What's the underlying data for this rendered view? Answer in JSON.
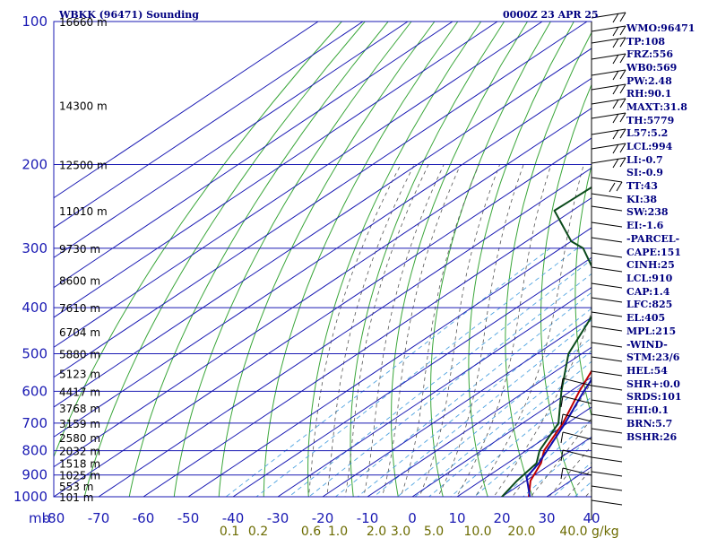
{
  "header": {
    "station": "WBKK (96471) Sounding",
    "time": "0000Z 23 APR 25"
  },
  "chart_data": {
    "type": "skew-t",
    "pressure_levels": [
      100,
      200,
      300,
      400,
      500,
      600,
      700,
      800,
      900,
      1000
    ],
    "pressure_unit_label": "mb",
    "temperature_ticks": [
      -80,
      -70,
      -60,
      -50,
      -40,
      -30,
      -20,
      -10,
      0,
      10,
      20,
      30,
      40
    ],
    "temperature_ticks_shown": [
      "-80",
      "-70",
      "-60",
      "-50",
      "-40",
      "-30",
      "-20",
      "-10",
      "0",
      "10",
      "20",
      "30",
      "40"
    ],
    "mixing_ratio_labels": [
      "0.1",
      "0.2",
      "0.6",
      "1.0",
      "2.0",
      "3.0",
      "5.0",
      "10.0",
      "20.0",
      "40.0"
    ],
    "mixing_ratio_unit": "g/kg",
    "height_labels": [
      {
        "p": 100,
        "text": "16660 m"
      },
      {
        "p": 150,
        "text": "14300 m"
      },
      {
        "p": 200,
        "text": "12500 m"
      },
      {
        "p": 250,
        "text": "11010 m"
      },
      {
        "p": 300,
        "text": "9730 m"
      },
      {
        "p": 350,
        "text": "8600 m"
      },
      {
        "p": 400,
        "text": "7610 m"
      },
      {
        "p": 450,
        "text": "6704 m"
      },
      {
        "p": 500,
        "text": "5880 m"
      },
      {
        "p": 550,
        "text": "5123 m"
      },
      {
        "p": 600,
        "text": "4417 m"
      },
      {
        "p": 650,
        "text": "3768 m"
      },
      {
        "p": 700,
        "text": "3159 m"
      },
      {
        "p": 750,
        "text": "2580 m"
      },
      {
        "p": 800,
        "text": "2032 m"
      },
      {
        "p": 850,
        "text": "1518 m"
      },
      {
        "p": 900,
        "text": "1025 m"
      },
      {
        "p": 950,
        "text": "553 m"
      },
      {
        "p": 1000,
        "text": "101 m"
      }
    ],
    "temperature_profile": [
      {
        "p": 1010,
        "t": 28
      },
      {
        "p": 1000,
        "t": 26
      },
      {
        "p": 925,
        "t": 21
      },
      {
        "p": 850,
        "t": 17.5
      },
      {
        "p": 800,
        "t": 14
      },
      {
        "p": 700,
        "t": 9
      },
      {
        "p": 600,
        "t": 2
      },
      {
        "p": 500,
        "t": -5.5
      },
      {
        "p": 400,
        "t": -15
      },
      {
        "p": 300,
        "t": -31
      },
      {
        "p": 250,
        "t": -41
      },
      {
        "p": 200,
        "t": -52
      },
      {
        "p": 150,
        "t": -66
      },
      {
        "p": 100,
        "t": -80
      }
    ],
    "dewpoint_profile": [
      {
        "p": 1010,
        "t": 22
      },
      {
        "p": 1000,
        "t": 20
      },
      {
        "p": 925,
        "t": 18
      },
      {
        "p": 850,
        "t": 16.5
      },
      {
        "p": 800,
        "t": 13
      },
      {
        "p": 700,
        "t": 8
      },
      {
        "p": 600,
        "t": -2
      },
      {
        "p": 500,
        "t": -13
      },
      {
        "p": 400,
        "t": -22
      },
      {
        "p": 350,
        "t": -31
      },
      {
        "p": 300,
        "t": -45
      },
      {
        "p": 290,
        "t": -50
      },
      {
        "p": 250,
        "t": -64
      },
      {
        "p": 200,
        "t": -63
      },
      {
        "p": 150,
        "t": -73
      },
      {
        "p": 100,
        "t": -88
      }
    ],
    "parcel_profile": [
      {
        "p": 1010,
        "t": 27
      },
      {
        "p": 910,
        "t": 19
      },
      {
        "p": 850,
        "t": 17
      },
      {
        "p": 700,
        "t": 9.5
      },
      {
        "p": 600,
        "t": 3
      },
      {
        "p": 500,
        "t": -4
      },
      {
        "p": 400,
        "t": -15
      },
      {
        "p": 300,
        "t": -31
      },
      {
        "p": 200,
        "t": -55
      },
      {
        "p": 150,
        "t": -71
      },
      {
        "p": 130,
        "t": -81
      }
    ]
  },
  "indices": {
    "wmo": "WMO:96471",
    "tp": "TP:108",
    "frz": "FRZ:556",
    "wb0": "WB0:569",
    "pw": "PW:2.48",
    "rh": "RH:90.1",
    "maxt": "MAXT:31.8",
    "th": "TH:5779",
    "l57": "L57:5.2",
    "lcl": "LCL:994",
    "li": "LI:-0.7",
    "si": "SI:-0.9",
    "tt": "TT:43",
    "ki": "KI:38",
    "sw": "SW:238",
    "ei": "EI:-1.6",
    "parcel_header": "-PARCEL-",
    "cape": "CAPE:151",
    "cinh": "CINH:25",
    "plcl": "LCL:910",
    "cap": "CAP:1.4",
    "lfc": "LFC:825",
    "el": "EL:405",
    "mpl": "MPL:215",
    "wind_header": "-WIND-",
    "stm": "STM:23/6",
    "hel": "HEL:54",
    "shr": "SHR+:0.0",
    "srds": "SRDS:101",
    "ehi": "EHI:0.1",
    "brn": "BRN:5.7",
    "bshr": "BSHR:26"
  },
  "colors": {
    "grid": "#1a1ab3",
    "dry_adiabat": "#3aa63a",
    "moist_adiabat": "#555555",
    "mixing_ratio": "#4fa3e0",
    "temperature": "#c00000",
    "dewpoint": "#0a4a1a",
    "parcel": "#1010b0"
  }
}
